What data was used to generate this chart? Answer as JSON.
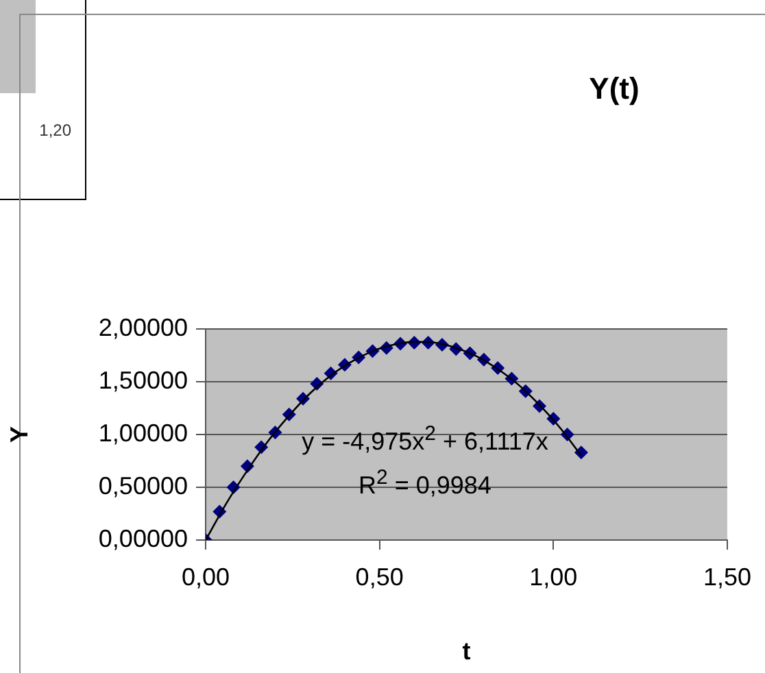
{
  "chart_data": [
    {
      "type": "other",
      "annotations": [
        "1,20"
      ]
    },
    {
      "type": "scatter",
      "title": "Y(t)",
      "xlabel": "t",
      "ylabel": "Y",
      "xlim": [
        0,
        1.5
      ],
      "xticks": [
        {
          "value": 0,
          "label": "0,00"
        },
        {
          "value": 0.5,
          "label": "0,50"
        },
        {
          "value": 1,
          "label": "1,00"
        },
        {
          "value": 1.5,
          "label": "1,50"
        }
      ],
      "ylim": [
        0,
        2
      ],
      "yticks": [
        {
          "value": 0,
          "label": "0,00000"
        },
        {
          "value": 0.5,
          "label": "0,50000"
        },
        {
          "value": 1,
          "label": "1,00000"
        },
        {
          "value": 1.5,
          "label": "1,50000"
        },
        {
          "value": 2,
          "label": "2,00000"
        }
      ],
      "grid": "y",
      "marker": "diamond",
      "legend": false,
      "annotations": [
        "y = -4,975x$^{2}$ + 6,1117x",
        "R$^{2}$ = 0,9984"
      ],
      "series": [
        {
          "type": "scatter",
          "color": "#000080",
          "x": [
            0,
            0.04,
            0.08,
            0.12,
            0.16,
            0.2,
            0.24,
            0.28,
            0.32,
            0.36,
            0.4,
            0.44,
            0.48,
            0.52,
            0.56,
            0.6,
            0.64,
            0.68,
            0.72,
            0.76,
            0.8,
            0.84,
            0.88,
            0.92,
            0.96,
            1,
            1.04,
            1.08
          ],
          "values": [
            0,
            0.27,
            0.5,
            0.7,
            0.88,
            1.02,
            1.19,
            1.34,
            1.48,
            1.58,
            1.66,
            1.73,
            1.79,
            1.82,
            1.86,
            1.87,
            1.87,
            1.85,
            1.81,
            1.77,
            1.71,
            1.63,
            1.53,
            1.41,
            1.27,
            1.15,
            1,
            0.83
          ]
        },
        {
          "type": "line",
          "color": "#000000",
          "marker": "none",
          "x": [
            0,
            0.06,
            0.12,
            0.18,
            0.24,
            0.3,
            0.36,
            0.42,
            0.48,
            0.54,
            0.6,
            0.66,
            0.72,
            0.78,
            0.84,
            0.9,
            0.96,
            1.02,
            1.08
          ],
          "values": [
            0,
            0.35,
            0.66,
            0.94,
            1.18,
            1.39,
            1.56,
            1.69,
            1.79,
            1.85,
            1.88,
            1.87,
            1.82,
            1.74,
            1.62,
            1.47,
            1.28,
            1.06,
            0.8
          ]
        }
      ]
    }
  ]
}
